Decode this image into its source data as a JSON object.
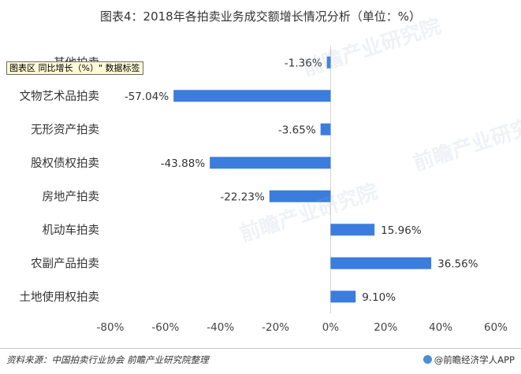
{
  "title": "图表4：2018年各拍卖业务成交额增长情况分析（单位：%）",
  "tooltip": "图表区 同比增长（%）\" 数据标签",
  "source": "资料来源：中国拍卖行业协会 前瞻产业研究院整理",
  "brand": "@前瞻经济学人APP",
  "brand_icon": "circle-logo-icon",
  "watermark": "前瞻产业研究院",
  "chart_data": {
    "type": "bar",
    "orientation": "horizontal",
    "categories": [
      "其他拍卖",
      "文物艺术品拍卖",
      "无形资产拍卖",
      "股权债权拍卖",
      "房地产拍卖",
      "机动车拍卖",
      "农副产品拍卖",
      "土地使用权拍卖"
    ],
    "series": [
      {
        "values": [
          -1.36,
          -57.04,
          -3.65,
          -43.88,
          -22.23,
          15.96,
          36.56,
          9.1
        ],
        "labels": [
          "-1.36%",
          "-57.04%",
          "-3.65%",
          "-43.88%",
          "-22.23%",
          "15.96%",
          "36.56%",
          "9.10%"
        ]
      }
    ],
    "xlim": [
      -80,
      60
    ],
    "xticks": [
      -80,
      -60,
      -40,
      -20,
      0,
      20,
      40,
      60
    ],
    "xtick_labels": [
      "-80%",
      "-60%",
      "-40%",
      "-20%",
      "0%",
      "20%",
      "40%",
      "60%"
    ],
    "bar_color": "#3b7ddd",
    "grid": false,
    "xlabel": "",
    "ylabel": ""
  }
}
